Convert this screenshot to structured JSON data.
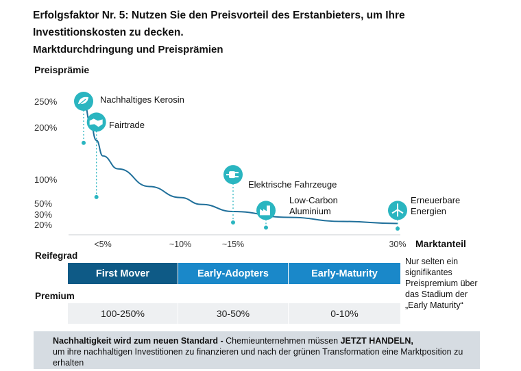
{
  "title": {
    "line1": "Erfolgsfaktor Nr. 5: Nutzen Sie den Preisvorteil des Erstanbieters, um Ihre",
    "line2": "Investitionskosten zu decken.",
    "line3": "Marktdurchdringung und Preisprämien"
  },
  "chart_data": {
    "type": "line",
    "ylabel": "Preisprämie",
    "xlabel": "Marktanteil",
    "y_ticks": [
      {
        "value": 250,
        "label": "250%"
      },
      {
        "value": 200,
        "label": "200%"
      },
      {
        "value": 100,
        "label": "100%"
      },
      {
        "value": 50,
        "label": "50%"
      },
      {
        "value": 30,
        "label": "30%"
      },
      {
        "value": 20,
        "label": "20%"
      }
    ],
    "x_ticks": [
      {
        "value": 5,
        "label": "<5%"
      },
      {
        "value": 10,
        "label": "~10%"
      },
      {
        "value": 15,
        "label": "~15%"
      },
      {
        "value": 30,
        "label": "30%"
      }
    ],
    "curve": {
      "x": [
        2,
        3,
        4,
        5,
        6,
        8,
        10,
        12,
        15,
        20,
        25,
        30
      ],
      "y": [
        258,
        210,
        175,
        145,
        120,
        85,
        62,
        48,
        35,
        27,
        23,
        21
      ]
    },
    "markers": [
      {
        "name": "Nachhaltiges Kerosin",
        "icon": "leaf-icon",
        "x": 2,
        "y": 250,
        "stem_end": 170
      },
      {
        "name": "Fairtrade",
        "icon": "handshake-icon",
        "x": 4,
        "y": 210,
        "stem_end": 63
      },
      {
        "name": "Elektrische Fahrzeuge",
        "icon": "plug-icon",
        "x": 15,
        "y": 109,
        "stem_end": 22
      },
      {
        "name": "Low-Carbon Aluminium",
        "icon": "factory-icon",
        "x": 18,
        "y": 37,
        "stem_end": 17
      },
      {
        "name": "Erneuerbare Energien",
        "icon": "wind-turbine-icon",
        "x": 30,
        "y": 37,
        "stem_end": 16
      }
    ],
    "accent_color": "#2ab5c0",
    "curve_color": "#1f6f9a"
  },
  "reifegrad": {
    "label": "Reifegrad",
    "stages": [
      "First Mover",
      "Early-Adopters",
      "Early-Maturity"
    ]
  },
  "premium": {
    "label": "Premium",
    "values": [
      "100-250%",
      "30-50%",
      "0-10%"
    ]
  },
  "side_note": "Nur selten ein signifikantes Preispremium über das Stadium der „Early Maturity“",
  "banner": {
    "bold1": "Nachhaltigkeit wird zum neuen Standard -",
    "text1": " Chemieunternehmen müssen ",
    "bold2": "JETZT HANDELN,",
    "text2": "um ihre nachhaltigen Investitionen zu finanzieren und nach der grünen Transformation eine Marktposition zu erhalten"
  }
}
